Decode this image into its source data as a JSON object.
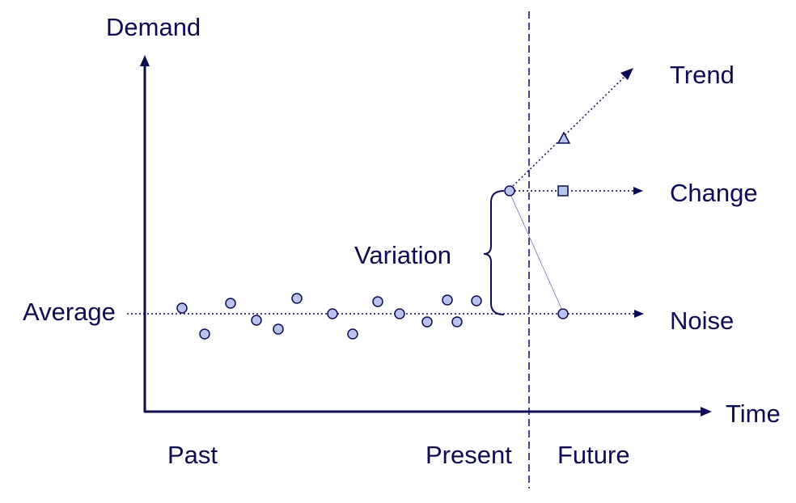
{
  "colors": {
    "ink": "#0c0c52",
    "marker_fill": "#b9c4ee",
    "guide_line": "#6e74a8"
  },
  "axes": {
    "y_label": "Demand",
    "x_label": "Time"
  },
  "periods": {
    "past": "Past",
    "present": "Present",
    "future": "Future"
  },
  "labels": {
    "average": "Average",
    "variation": "Variation"
  },
  "scenarios": [
    {
      "id": "trend",
      "label": "Trend",
      "marker": "triangle"
    },
    {
      "id": "change",
      "label": "Change",
      "marker": "square"
    },
    {
      "id": "noise",
      "label": "Noise",
      "marker": "circle"
    }
  ],
  "observation_count": 15
}
